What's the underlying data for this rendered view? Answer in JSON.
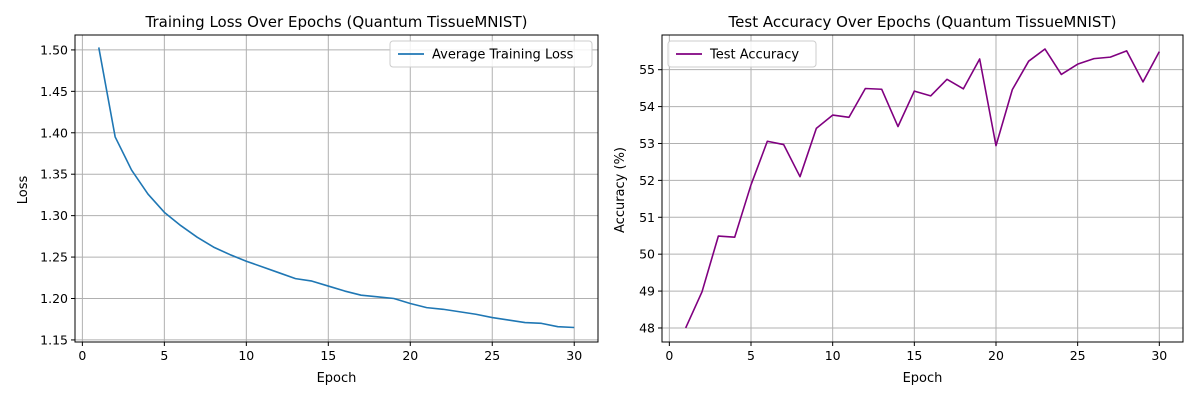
{
  "chart_data": [
    {
      "type": "line",
      "title": "Training Loss Over Epochs (Quantum TissueMNIST)",
      "xlabel": "Epoch",
      "ylabel": "Loss",
      "xlim": [
        -0.45,
        31.45
      ],
      "ylim": [
        1.1475,
        1.518
      ],
      "xticks": [
        0,
        5,
        10,
        15,
        20,
        25,
        30
      ],
      "yticks": [
        1.15,
        1.2,
        1.25,
        1.3,
        1.35,
        1.4,
        1.45,
        1.5
      ],
      "ytick_labels": [
        "1.15",
        "1.20",
        "1.25",
        "1.30",
        "1.35",
        "1.40",
        "1.45",
        "1.50"
      ],
      "grid": true,
      "legend_position": "upper right",
      "series": [
        {
          "name": "Average Training Loss",
          "color": "#1f77b4",
          "x": [
            1,
            2,
            3,
            4,
            5,
            6,
            7,
            8,
            9,
            10,
            11,
            12,
            13,
            14,
            15,
            16,
            17,
            18,
            19,
            20,
            21,
            22,
            23,
            24,
            25,
            26,
            27,
            28,
            29,
            30
          ],
          "values": [
            1.503,
            1.395,
            1.355,
            1.326,
            1.304,
            1.288,
            1.274,
            1.262,
            1.253,
            1.245,
            1.238,
            1.231,
            1.224,
            1.221,
            1.215,
            1.209,
            1.204,
            1.202,
            1.2,
            1.194,
            1.189,
            1.187,
            1.184,
            1.181,
            1.177,
            1.174,
            1.171,
            1.17,
            1.166,
            1.165
          ]
        }
      ]
    },
    {
      "type": "line",
      "title": "Test Accuracy Over Epochs (Quantum TissueMNIST)",
      "xlabel": "Epoch",
      "ylabel": "Accuracy (%)",
      "xlim": [
        -0.45,
        31.45
      ],
      "ylim": [
        47.62,
        55.94
      ],
      "xticks": [
        0,
        5,
        10,
        15,
        20,
        25,
        30
      ],
      "yticks": [
        48,
        49,
        50,
        51,
        52,
        53,
        54,
        55
      ],
      "ytick_labels": [
        "48",
        "49",
        "50",
        "51",
        "52",
        "53",
        "54",
        "55"
      ],
      "grid": true,
      "legend_position": "upper left",
      "series": [
        {
          "name": "Test Accuracy",
          "color": "#800080",
          "x": [
            1,
            2,
            3,
            4,
            5,
            6,
            7,
            8,
            9,
            10,
            11,
            12,
            13,
            14,
            15,
            16,
            17,
            18,
            19,
            20,
            21,
            22,
            23,
            24,
            25,
            26,
            27,
            28,
            29,
            30
          ],
          "values": [
            48.0,
            48.98,
            50.49,
            50.46,
            51.88,
            53.06,
            52.97,
            52.1,
            53.41,
            53.77,
            53.71,
            54.49,
            54.47,
            53.46,
            54.42,
            54.29,
            54.74,
            54.48,
            55.29,
            52.94,
            54.46,
            55.23,
            55.56,
            54.87,
            55.15,
            55.3,
            55.34,
            55.51,
            54.67,
            55.49
          ]
        }
      ]
    }
  ]
}
